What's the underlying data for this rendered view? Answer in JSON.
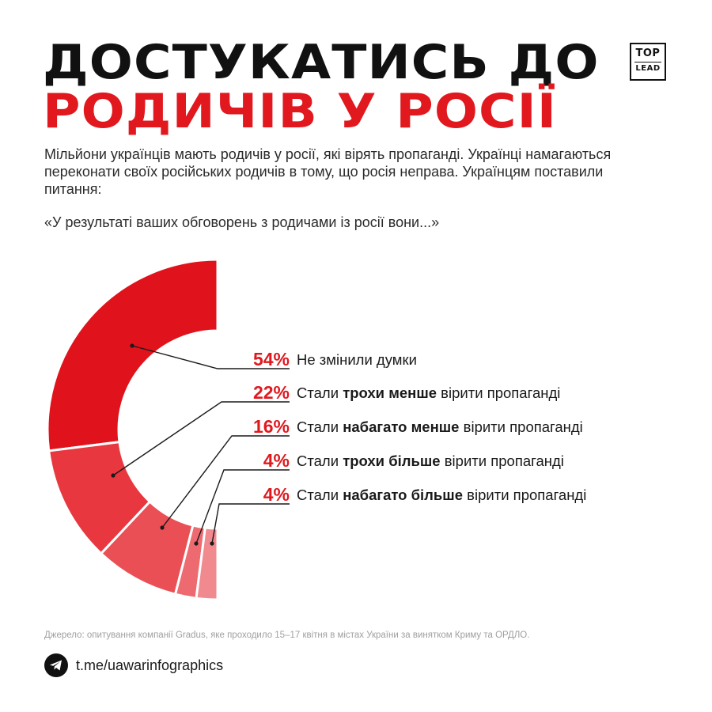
{
  "title": {
    "line1": "ДОСТУКАТИСЬ ДО",
    "line2": "РОДИЧІВ У РОСІЇ"
  },
  "logo": {
    "top": "TOP",
    "bottom": "LEAD"
  },
  "intro": "Мільйони українців мають родичів у росії, які вірять пропаганді. Українці намагаються переконати своїх російських родичів в тому, що росія неправа. Українцям поставили питання:",
  "question": "«У результаті ваших обговорень з родичами із росії вони...»",
  "chart_data": {
    "type": "pie",
    "subtype": "half-donut",
    "values": [
      54,
      22,
      16,
      4,
      4
    ],
    "labels": [
      {
        "pct": "54%",
        "parts": [
          {
            "text": "Не змінили думки",
            "bold": false
          }
        ]
      },
      {
        "pct": "22%",
        "parts": [
          {
            "text": "Стали ",
            "bold": false
          },
          {
            "text": "трохи менше",
            "bold": true
          },
          {
            "text": " вірити пропаганді",
            "bold": false
          }
        ]
      },
      {
        "pct": "16%",
        "parts": [
          {
            "text": "Стали ",
            "bold": false
          },
          {
            "text": "набагато менше",
            "bold": true
          },
          {
            "text": " вірити пропаганді",
            "bold": false
          }
        ]
      },
      {
        "pct": "4%",
        "parts": [
          {
            "text": "Стали ",
            "bold": false
          },
          {
            "text": "трохи більше",
            "bold": true
          },
          {
            "text": " вірити пропаганді",
            "bold": false
          }
        ]
      },
      {
        "pct": "4%",
        "parts": [
          {
            "text": "Стали ",
            "bold": false
          },
          {
            "text": "набагато більше",
            "bold": true
          },
          {
            "text": " вірити пропаганді",
            "bold": false
          }
        ]
      }
    ],
    "colors": [
      "#e0131c",
      "#e8373f",
      "#ea4f55",
      "#ed6a70",
      "#f08a8f"
    ]
  },
  "source": "Джерело: опитування компанії Gradus, яке проходило 15–17 квітня в містах України за винятком Криму та ОРДЛО.",
  "telegram": {
    "icon": "telegram-icon",
    "link": "t.me/uawarinfographics"
  }
}
